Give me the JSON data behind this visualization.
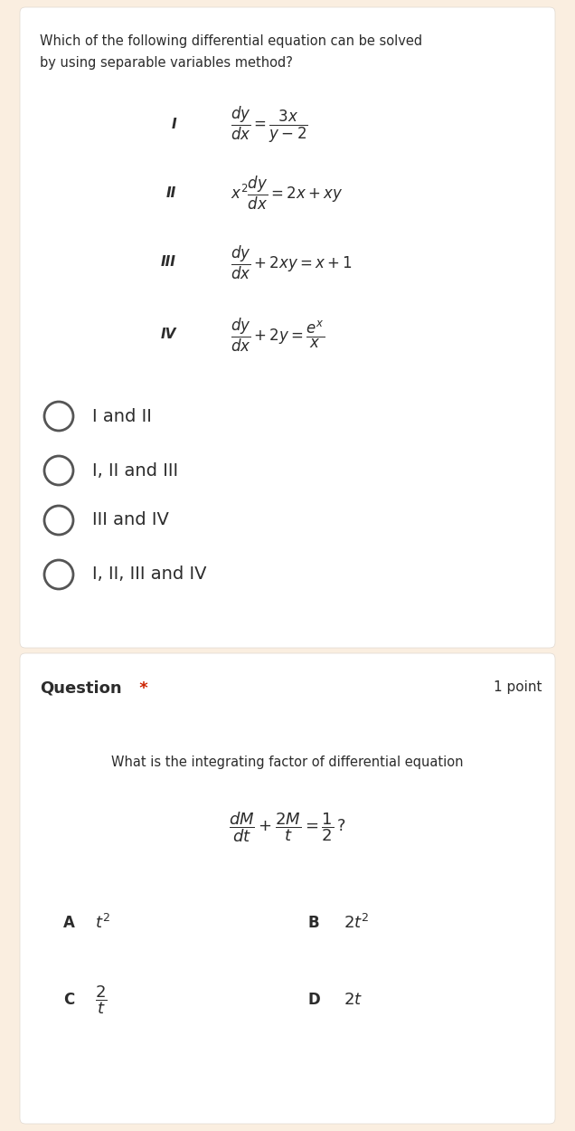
{
  "bg_color": "#faeee0",
  "card_color": "#ffffff",
  "text_color": "#2c2c2c",
  "red_color": "#cc2200",
  "q1_line1": "Which of the following differential equation can be solved",
  "q1_line2": "by using separable variables method?",
  "equations": [
    {
      "label": "I",
      "expr_math": "$\\dfrac{dy}{dx} = \\dfrac{3x}{y-2}$"
    },
    {
      "label": "II",
      "expr_math": "$x^2 \\dfrac{dy}{dx} = 2x + xy$"
    },
    {
      "label": "III",
      "expr_math": "$\\dfrac{dy}{dx} + 2xy = x+1$"
    },
    {
      "label": "IV",
      "expr_math": "$\\dfrac{dy}{dx} + 2y = \\dfrac{e^x}{x}$"
    }
  ],
  "options": [
    "I and II",
    "I, II and III",
    "III and IV",
    "I, II, III and IV"
  ],
  "q2_label": "Question",
  "q2_star": " *",
  "q2_point": "1 point",
  "q2_text": "What is the integrating factor of differential equation",
  "q2_eq": "$\\dfrac{dM}{dt} + \\dfrac{2M}{t} = \\dfrac{1}{2}\\,?$",
  "answers": [
    {
      "label": "A",
      "val": "$t^2$"
    },
    {
      "label": "B",
      "val": "$2t^2$"
    },
    {
      "label": "C",
      "val": "$\\dfrac{2}{t}$"
    },
    {
      "label": "D",
      "val": "$2t$"
    }
  ]
}
